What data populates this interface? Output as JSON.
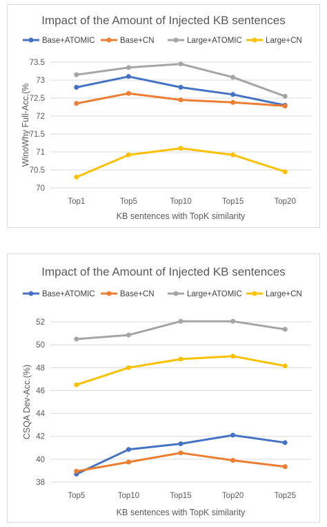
{
  "chart_data": [
    {
      "type": "line",
      "title": "Impact of the Amount of Injected KB sentences",
      "xlabel": "KB sentences with TopK similarity",
      "ylabel": "WinoWhy Full-Acc.(%",
      "categories": [
        "Top1",
        "Top5",
        "Top10",
        "Top15",
        "Top20"
      ],
      "ylim": [
        70,
        73.5
      ],
      "yticks": [
        "70",
        "70.5",
        "71",
        "71.5",
        "72",
        "72.5",
        "73",
        "73.5"
      ],
      "grid": true,
      "legend": "top",
      "series": [
        {
          "name": "Base+ATOMIC",
          "color": "#4472C4",
          "values": [
            72.8,
            73.1,
            72.8,
            72.6,
            72.3
          ]
        },
        {
          "name": "Base+CN",
          "color": "#ED7D31",
          "values": [
            72.35,
            72.63,
            72.45,
            72.38,
            72.28
          ]
        },
        {
          "name": "Large+ATOMIC",
          "color": "#A5A5A5",
          "values": [
            73.15,
            73.35,
            73.45,
            73.08,
            72.55
          ]
        },
        {
          "name": "Large+CN",
          "color": "#FFC000",
          "values": [
            70.3,
            70.92,
            71.1,
            70.92,
            70.45
          ]
        }
      ]
    },
    {
      "type": "line",
      "title": "Impact of the Amount of Injected KB sentences",
      "xlabel": "KB sentences with TopK similarity",
      "ylabel": "CSQA Dev-Acc.(%)",
      "categories": [
        "Top5",
        "Top10",
        "Top15",
        "Top20",
        "Top25"
      ],
      "ylim": [
        38,
        52
      ],
      "yticks": [
        "38",
        "40",
        "42",
        "44",
        "46",
        "48",
        "50",
        "52"
      ],
      "grid": true,
      "legend": "top",
      "series": [
        {
          "name": "Base+ATOMIC",
          "color": "#4472C4",
          "values": [
            38.7,
            40.85,
            41.35,
            42.1,
            41.45
          ]
        },
        {
          "name": "Base+CN",
          "color": "#ED7D31",
          "values": [
            38.95,
            39.75,
            40.55,
            39.9,
            39.35
          ]
        },
        {
          "name": "Large+ATOMIC",
          "color": "#A5A5A5",
          "values": [
            50.5,
            50.85,
            52.05,
            52.05,
            51.35
          ]
        },
        {
          "name": "Large+CN",
          "color": "#FFC000",
          "values": [
            46.5,
            48.0,
            48.75,
            49.0,
            48.15
          ]
        }
      ]
    }
  ]
}
